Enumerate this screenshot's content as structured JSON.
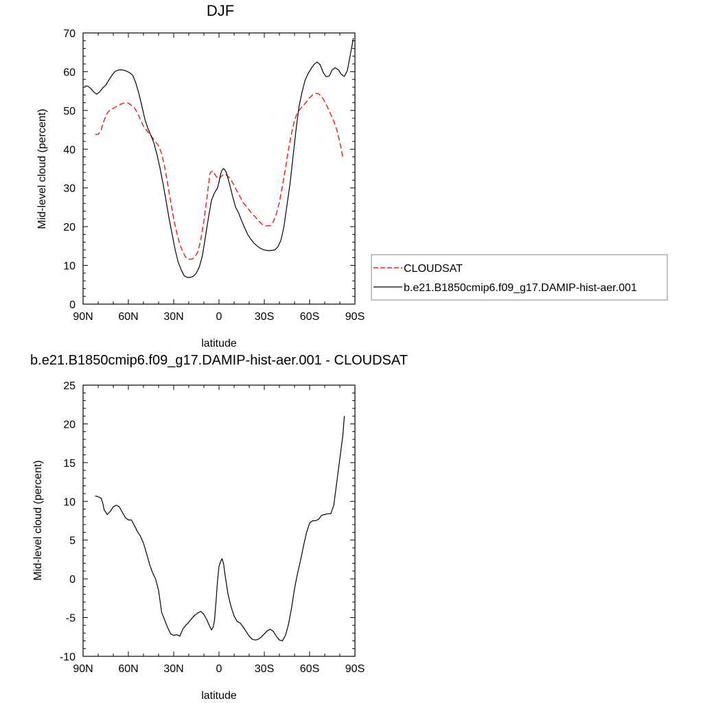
{
  "chart_data": [
    {
      "type": "line",
      "title": "DJF",
      "xlabel": "latitude",
      "ylabel": "Mid-level cloud (percent)",
      "xlim": [
        90,
        -90
      ],
      "ylim": [
        0,
        70
      ],
      "x_ticks": [
        {
          "value": 90,
          "label": "90N"
        },
        {
          "value": 60,
          "label": "60N"
        },
        {
          "value": 30,
          "label": "30N"
        },
        {
          "value": 0,
          "label": "0"
        },
        {
          "value": -30,
          "label": "30S"
        },
        {
          "value": -60,
          "label": "60S"
        },
        {
          "value": -90,
          "label": "90S"
        }
      ],
      "y_ticks": [
        0,
        10,
        20,
        30,
        40,
        50,
        60,
        70
      ],
      "grid": false,
      "legend": "right",
      "series": [
        {
          "name": "CLOUDSAT",
          "color": "#ee2222",
          "dash": true,
          "points": [
            [
              82,
              43.8
            ],
            [
              80,
              43.8
            ],
            [
              78,
              45
            ],
            [
              76,
              47.5
            ],
            [
              74,
              49.3
            ],
            [
              72,
              50.2
            ],
            [
              70,
              50.5
            ],
            [
              68,
              51
            ],
            [
              66,
              51.4
            ],
            [
              64,
              51.8
            ],
            [
              62,
              52
            ],
            [
              60,
              51.9
            ],
            [
              58,
              51.3
            ],
            [
              56,
              50.7
            ],
            [
              54,
              49.4
            ],
            [
              52,
              47.6
            ],
            [
              50,
              45.9
            ],
            [
              48,
              44.9
            ],
            [
              46,
              43.9
            ],
            [
              44,
              42.9
            ],
            [
              42,
              41.9
            ],
            [
              40,
              40.9
            ],
            [
              38,
              38.9
            ],
            [
              36,
              35.5
            ],
            [
              34,
              31
            ],
            [
              32,
              26.5
            ],
            [
              30,
              22
            ],
            [
              28,
              18.5
            ],
            [
              26,
              15.5
            ],
            [
              24,
              13.5
            ],
            [
              22,
              12.1
            ],
            [
              20,
              11.6
            ],
            [
              18,
              11.6
            ],
            [
              16,
              12.1
            ],
            [
              14,
              13.5
            ],
            [
              12,
              16.7
            ],
            [
              10,
              21.5
            ],
            [
              8,
              27.3
            ],
            [
              6,
              33.8
            ],
            [
              5,
              34.2
            ],
            [
              4,
              34.4
            ],
            [
              2,
              33
            ],
            [
              0,
              32.3
            ],
            [
              -2,
              33.2
            ],
            [
              -4,
              33.6
            ],
            [
              -6,
              33
            ],
            [
              -8,
              32
            ],
            [
              -10,
              30.7
            ],
            [
              -12,
              29.1
            ],
            [
              -14,
              27.7
            ],
            [
              -16,
              26.2
            ],
            [
              -18,
              25.3
            ],
            [
              -20,
              24.3
            ],
            [
              -22,
              23.3
            ],
            [
              -24,
              22.5
            ],
            [
              -26,
              21.6
            ],
            [
              -28,
              20.8
            ],
            [
              -30,
              20.3
            ],
            [
              -32,
              20.2
            ],
            [
              -34,
              20.3
            ],
            [
              -36,
              21.3
            ],
            [
              -38,
              23.3
            ],
            [
              -40,
              26.3
            ],
            [
              -42,
              30.5
            ],
            [
              -44,
              35
            ],
            [
              -46,
              40
            ],
            [
              -48,
              44
            ],
            [
              -50,
              47.4
            ],
            [
              -52,
              49.5
            ],
            [
              -54,
              50.5
            ],
            [
              -56,
              51.3
            ],
            [
              -58,
              52.3
            ],
            [
              -60,
              53.3
            ],
            [
              -62,
              54
            ],
            [
              -64,
              54.4
            ],
            [
              -66,
              54.3
            ],
            [
              -68,
              53.5
            ],
            [
              -70,
              52.3
            ],
            [
              -72,
              50.7
            ],
            [
              -74,
              49
            ],
            [
              -76,
              47.2
            ],
            [
              -78,
              45
            ],
            [
              -80,
              41.8
            ],
            [
              -82,
              38
            ]
          ]
        },
        {
          "name": "b.e21.B1850cmip6.f09_g17.DAMIP-hist-aer.001",
          "color": "#000000",
          "dash": false,
          "points": [
            [
              89,
              56.3
            ],
            [
              87,
              56.3
            ],
            [
              85,
              55.7
            ],
            [
              83,
              54.8
            ],
            [
              81,
              54.2
            ],
            [
              79,
              54.8
            ],
            [
              77,
              55.8
            ],
            [
              75,
              56.5
            ],
            [
              73,
              57.8
            ],
            [
              71,
              59
            ],
            [
              69,
              60
            ],
            [
              67,
              60.4
            ],
            [
              65,
              60.5
            ],
            [
              63,
              60.4
            ],
            [
              61,
              60.1
            ],
            [
              59,
              59.7
            ],
            [
              57,
              59
            ],
            [
              55,
              57
            ],
            [
              53,
              54.3
            ],
            [
              51,
              51
            ],
            [
              49,
              47.6
            ],
            [
              47,
              45.3
            ],
            [
              45,
              43.5
            ],
            [
              43,
              41.5
            ],
            [
              41,
              38.5
            ],
            [
              39,
              35
            ],
            [
              37,
              31
            ],
            [
              35,
              26.6
            ],
            [
              33,
              22
            ],
            [
              31,
              18
            ],
            [
              29,
              14
            ],
            [
              27,
              10.8
            ],
            [
              25,
              8.8
            ],
            [
              23,
              7.3
            ],
            [
              21,
              6.9
            ],
            [
              19,
              6.9
            ],
            [
              17,
              7.2
            ],
            [
              15,
              8
            ],
            [
              13,
              9.6
            ],
            [
              11,
              12.5
            ],
            [
              9,
              17.3
            ],
            [
              7,
              22.3
            ],
            [
              5,
              26.8
            ],
            [
              3,
              28.7
            ],
            [
              1,
              30
            ],
            [
              0,
              31.5
            ],
            [
              -1,
              33.5
            ],
            [
              -2,
              34.6
            ],
            [
              -3,
              35
            ],
            [
              -4,
              34.6
            ],
            [
              -5,
              33.8
            ],
            [
              -7,
              31
            ],
            [
              -9,
              27.8
            ],
            [
              -11,
              25
            ],
            [
              -13,
              23.5
            ],
            [
              -15,
              21.5
            ],
            [
              -17,
              19.7
            ],
            [
              -19,
              18
            ],
            [
              -21,
              16.8
            ],
            [
              -23,
              15.8
            ],
            [
              -25,
              15.1
            ],
            [
              -27,
              14.5
            ],
            [
              -29,
              14.1
            ],
            [
              -31,
              13.9
            ],
            [
              -33,
              13.8
            ],
            [
              -35,
              13.9
            ],
            [
              -37,
              14
            ],
            [
              -39,
              14.8
            ],
            [
              -41,
              16.5
            ],
            [
              -43,
              20
            ],
            [
              -45,
              25.5
            ],
            [
              -47,
              31
            ],
            [
              -49,
              38
            ],
            [
              -51,
              45
            ],
            [
              -53,
              51
            ],
            [
              -55,
              54.8
            ],
            [
              -57,
              57.8
            ],
            [
              -59,
              59.5
            ],
            [
              -61,
              60.8
            ],
            [
              -63,
              61.9
            ],
            [
              -65,
              62.5
            ],
            [
              -67,
              61.8
            ],
            [
              -69,
              59.8
            ],
            [
              -71,
              58.7
            ],
            [
              -73,
              58.9
            ],
            [
              -75,
              60.5
            ],
            [
              -77,
              61
            ],
            [
              -79,
              60.5
            ],
            [
              -81,
              59.3
            ],
            [
              -83,
              58.8
            ],
            [
              -85,
              60.3
            ],
            [
              -87,
              64.5
            ],
            [
              -89,
              68.7
            ]
          ]
        }
      ]
    },
    {
      "type": "line",
      "title": "b.e21.B1850cmip6.f09_g17.DAMIP-hist-aer.001 - CLOUDSAT",
      "xlabel": "latitude",
      "ylabel": "Mid-level cloud (percent)",
      "xlim": [
        90,
        -90
      ],
      "ylim": [
        -10,
        25
      ],
      "x_ticks": [
        {
          "value": 90,
          "label": "90N"
        },
        {
          "value": 60,
          "label": "60N"
        },
        {
          "value": 30,
          "label": "30N"
        },
        {
          "value": 0,
          "label": "0"
        },
        {
          "value": -30,
          "label": "30S"
        },
        {
          "value": -60,
          "label": "60S"
        },
        {
          "value": -90,
          "label": "90S"
        }
      ],
      "y_ticks": [
        -10,
        -5,
        0,
        5,
        10,
        15,
        20,
        25
      ],
      "grid": false,
      "series": [
        {
          "color": "#000000",
          "dash": false,
          "points": [
            [
              82,
              10.7
            ],
            [
              80,
              10.6
            ],
            [
              78,
              10.4
            ],
            [
              77,
              9.8
            ],
            [
              76,
              8.9
            ],
            [
              74,
              8.3
            ],
            [
              72,
              8.7
            ],
            [
              70,
              9.3
            ],
            [
              68,
              9.5
            ],
            [
              66,
              9.3
            ],
            [
              64,
              8.6
            ],
            [
              62,
              7.9
            ],
            [
              60,
              7.6
            ],
            [
              58,
              7.6
            ],
            [
              56,
              6.9
            ],
            [
              54,
              6.1
            ],
            [
              52,
              5.5
            ],
            [
              50,
              4.6
            ],
            [
              48,
              3.3
            ],
            [
              46,
              1.9
            ],
            [
              44,
              0.8
            ],
            [
              42,
              0
            ],
            [
              40,
              -1.5
            ],
            [
              38,
              -4.3
            ],
            [
              36,
              -5.3
            ],
            [
              34,
              -6.3
            ],
            [
              32,
              -7.1
            ],
            [
              30,
              -7.3
            ],
            [
              28,
              -7.2
            ],
            [
              26,
              -7.4
            ],
            [
              24,
              -6.5
            ],
            [
              22,
              -6
            ],
            [
              20,
              -5.6
            ],
            [
              18,
              -5.1
            ],
            [
              16,
              -4.7
            ],
            [
              14,
              -4.4
            ],
            [
              12,
              -4.2
            ],
            [
              10,
              -4.6
            ],
            [
              8,
              -5.3
            ],
            [
              6,
              -6.2
            ],
            [
              5,
              -6.6
            ],
            [
              4,
              -6.3
            ],
            [
              3,
              -5.4
            ],
            [
              2,
              -3
            ],
            [
              1,
              -0.3
            ],
            [
              0,
              1.6
            ],
            [
              -1,
              2.2
            ],
            [
              -2,
              2.6
            ],
            [
              -3,
              2
            ],
            [
              -4,
              0.5
            ],
            [
              -6,
              -2
            ],
            [
              -8,
              -3.6
            ],
            [
              -10,
              -4.8
            ],
            [
              -12,
              -5.5
            ],
            [
              -14,
              -5.7
            ],
            [
              -16,
              -6.2
            ],
            [
              -18,
              -6.8
            ],
            [
              -20,
              -7.4
            ],
            [
              -22,
              -7.8
            ],
            [
              -24,
              -7.9
            ],
            [
              -26,
              -7.8
            ],
            [
              -28,
              -7.5
            ],
            [
              -30,
              -7.1
            ],
            [
              -32,
              -6.7
            ],
            [
              -34,
              -6.5
            ],
            [
              -36,
              -6.8
            ],
            [
              -38,
              -7.4
            ],
            [
              -40,
              -7.9
            ],
            [
              -42,
              -8
            ],
            [
              -44,
              -7.3
            ],
            [
              -46,
              -5.9
            ],
            [
              -48,
              -3.8
            ],
            [
              -50,
              -1.3
            ],
            [
              -52,
              0.7
            ],
            [
              -54,
              2.4
            ],
            [
              -56,
              4.3
            ],
            [
              -58,
              6
            ],
            [
              -60,
              7.2
            ],
            [
              -62,
              7.5
            ],
            [
              -64,
              7.5
            ],
            [
              -66,
              7.7
            ],
            [
              -68,
              8.2
            ],
            [
              -70,
              8.3
            ],
            [
              -72,
              8.4
            ],
            [
              -74,
              8.4
            ],
            [
              -76,
              9.5
            ],
            [
              -78,
              12.5
            ],
            [
              -80,
              15.5
            ],
            [
              -82,
              18.5
            ],
            [
              -83,
              21
            ]
          ]
        }
      ]
    }
  ]
}
